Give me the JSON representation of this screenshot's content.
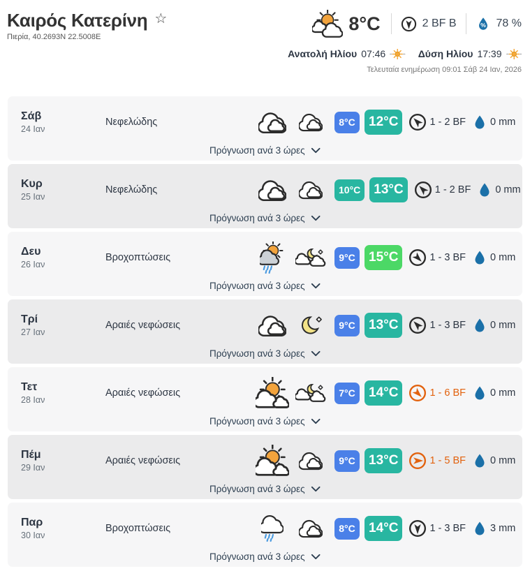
{
  "header": {
    "title": "Καιρός Κατερίνη",
    "favorite_icon": "star-outline",
    "location": "Πιερία, 40.2693N 22.5008E",
    "current": {
      "icon": "sun-clouds",
      "temperature": "8°C",
      "wind_icon": "wind-compass",
      "wind": "2 BF B",
      "wind_dir_deg": 180,
      "humidity_icon": "humidity-droplet",
      "humidity": "78 %"
    },
    "sun": {
      "sunrise_label": "Ανατολή Ηλίου",
      "sunrise_time": "07:46",
      "sunrise_icon": "small-sun",
      "sunset_label": "Δύση Ηλίου",
      "sunset_time": "17:39",
      "sunset_icon": "small-sun"
    },
    "last_update": "Τελευταία ενημέρωση 09:01 Σάβ 24 Ιαν, 2026"
  },
  "forecast": {
    "expand_label": "Πρόγνωση ανά 3 ώρες",
    "expand_icon": "chevron-down",
    "precip_icon": "droplet",
    "rows": [
      {
        "day": "Σάβ",
        "date": "24 Ιαν",
        "description": "Νεφελώδης",
        "day_icon": "clouds",
        "night_icon": "clouds",
        "temp_low": "8°C",
        "temp_low_color": "#4a80e8",
        "temp_high": "12°C",
        "temp_high_color": "#28b6a1",
        "wind_dir_deg": -45,
        "wind_label": "1 - 2 BF",
        "wind_color": "#2b2b2b",
        "wind_text_color": "#2d3643",
        "precip": "0 mm"
      },
      {
        "day": "Κυρ",
        "date": "25 Ιαν",
        "description": "Νεφελώδης",
        "day_icon": "clouds",
        "night_icon": "clouds",
        "temp_low": "10°C",
        "temp_low_color": "#28b6a1",
        "temp_high": "13°C",
        "temp_high_color": "#28b6a1",
        "wind_dir_deg": -45,
        "wind_label": "1 - 2 BF",
        "wind_color": "#2b2b2b",
        "wind_text_color": "#2d3643",
        "precip": "0 mm"
      },
      {
        "day": "Δευ",
        "date": "26 Ιαν",
        "description": "Βροχοπτώσεις",
        "day_icon": "sun-rain",
        "night_icon": "moon-cloud-star",
        "temp_low": "9°C",
        "temp_low_color": "#4a80e8",
        "temp_high": "15°C",
        "temp_high_color": "#4cd866",
        "wind_dir_deg": 135,
        "wind_label": "1 - 3 BF",
        "wind_color": "#2b2b2b",
        "wind_text_color": "#2d3643",
        "precip": "0 mm"
      },
      {
        "day": "Τρί",
        "date": "27 Ιαν",
        "description": "Αραιές νεφώσεις",
        "day_icon": "clouds",
        "night_icon": "moon-star",
        "temp_low": "9°C",
        "temp_low_color": "#4a80e8",
        "temp_high": "13°C",
        "temp_high_color": "#28b6a1",
        "wind_dir_deg": -45,
        "wind_label": "1 - 3 BF",
        "wind_color": "#2b2b2b",
        "wind_text_color": "#2d3643",
        "precip": "0 mm"
      },
      {
        "day": "Τετ",
        "date": "28 Ιαν",
        "description": "Αραιές νεφώσεις",
        "day_icon": "sun-cloud",
        "night_icon": "moon-cloud-star",
        "temp_low": "7°C",
        "temp_low_color": "#4a80e8",
        "temp_high": "14°C",
        "temp_high_color": "#28b6a1",
        "wind_dir_deg": 135,
        "wind_label": "1 - 6 BF",
        "wind_color": "#e2620e",
        "wind_text_color": "#e2620e",
        "precip": "0 mm"
      },
      {
        "day": "Πέμ",
        "date": "29 Ιαν",
        "description": "Αραιές νεφώσεις",
        "day_icon": "sun-cloud",
        "night_icon": "clouds",
        "temp_low": "9°C",
        "temp_low_color": "#4a80e8",
        "temp_high": "13°C",
        "temp_high_color": "#28b6a1",
        "wind_dir_deg": 90,
        "wind_label": "1 - 5 BF",
        "wind_color": "#e2620e",
        "wind_text_color": "#e2620e",
        "precip": "0 mm"
      },
      {
        "day": "Παρ",
        "date": "30 Ιαν",
        "description": "Βροχοπτώσεις",
        "day_icon": "rain-cloud",
        "night_icon": "clouds",
        "temp_low": "8°C",
        "temp_low_color": "#4a80e8",
        "temp_high": "14°C",
        "temp_high_color": "#28b6a1",
        "wind_dir_deg": 180,
        "wind_label": "1 - 3 BF",
        "wind_color": "#2b2b2b",
        "wind_text_color": "#2d3643",
        "precip": "3 mm"
      }
    ]
  },
  "colors": {
    "badge_blue": "#4a80e8",
    "badge_teal": "#28b6a1",
    "badge_green": "#4cd866",
    "wind_alert_orange": "#e2620e",
    "droplet_blue": "#1b70a8",
    "row_light": "#f6f6f7",
    "row_dark": "#ebebec"
  }
}
